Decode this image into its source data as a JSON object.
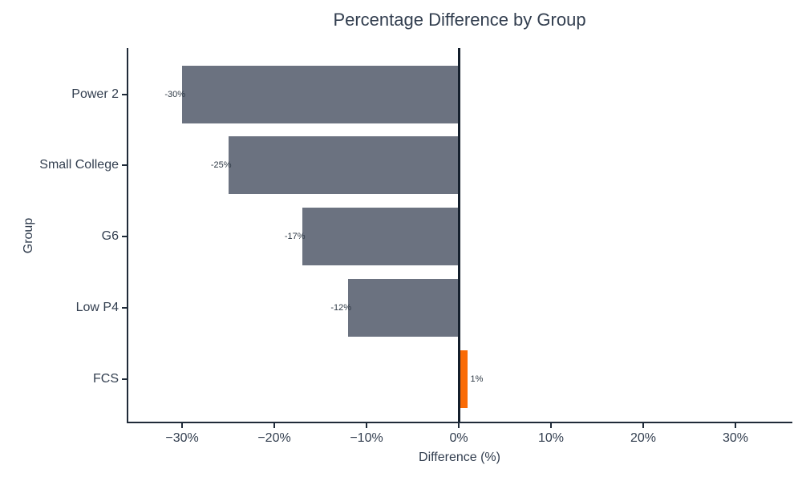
{
  "chart_data": {
    "type": "bar",
    "orientation": "horizontal",
    "title": "Percentage Difference by Group",
    "xlabel": "Difference (%)",
    "ylabel": "Group",
    "categories": [
      "Power 2",
      "Small College",
      "G6",
      "Low P4",
      "FCS"
    ],
    "values": [
      -30,
      -25,
      -17,
      -12,
      1
    ],
    "bar_labels": [
      "-30%",
      "-25%",
      "-17%",
      "-12%",
      "1%"
    ],
    "x_ticks": {
      "values": [
        -30,
        -20,
        -10,
        0,
        10,
        20,
        30
      ],
      "labels": [
        "−30%",
        "−20%",
        "−10%",
        "0%",
        "10%",
        "20%",
        "30%"
      ]
    },
    "xlim": [
      -35.83,
      36.35
    ],
    "grid": false,
    "legend": "none",
    "zero_line": true,
    "colors": {
      "negative_bar": "#6b7280",
      "positive_bar": "#fa6b05",
      "zero_line": "#141f2c",
      "axis": "#202b39",
      "title_text": "#323e4f",
      "tick_text": "#323e4f",
      "bar_label_text": "#2e3945",
      "background": "#ffffff"
    }
  }
}
